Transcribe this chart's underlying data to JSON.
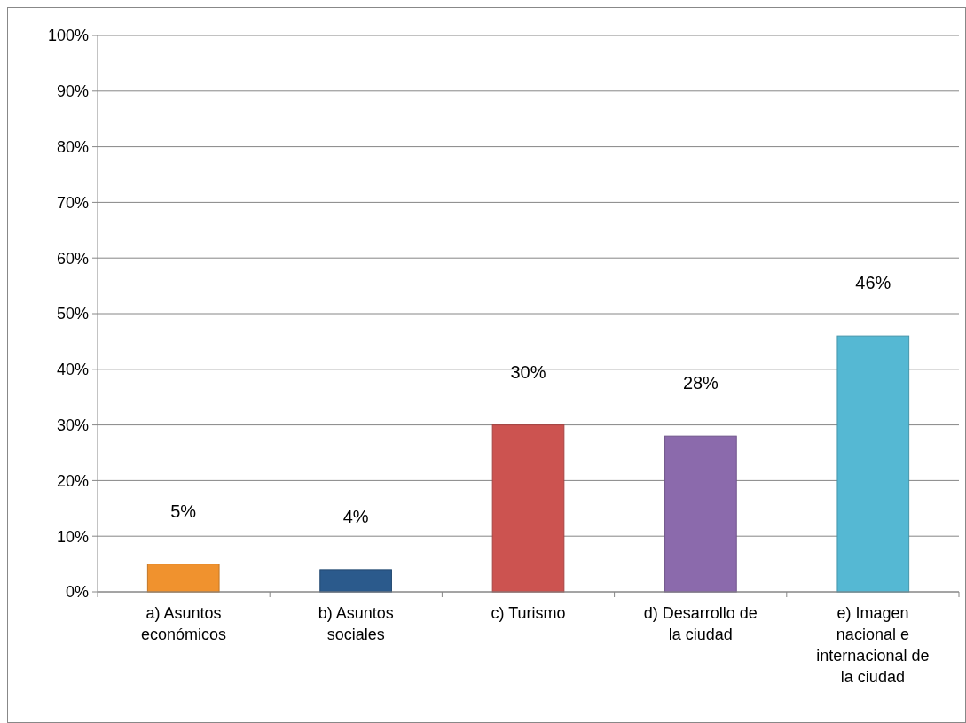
{
  "chart_data": {
    "type": "bar",
    "categories": [
      "a) Asuntos económicos",
      "b) Asuntos sociales",
      "c) Turismo",
      "d) Desarrollo de la ciudad",
      "e) Imagen nacional e internacional de la ciudad"
    ],
    "values": [
      5,
      4,
      30,
      28,
      46
    ],
    "colors": [
      "#f0922e",
      "#2b5a8c",
      "#cc5350",
      "#8b6aac",
      "#55b8d3"
    ],
    "value_labels": [
      "5%",
      "4%",
      "30%",
      "28%",
      "46%"
    ],
    "ylim": [
      0,
      100
    ],
    "yticks": [
      {
        "value": 0,
        "label": "0%"
      },
      {
        "value": 10,
        "label": "10%"
      },
      {
        "value": 20,
        "label": "20%"
      },
      {
        "value": 30,
        "label": "30%"
      },
      {
        "value": 40,
        "label": "40%"
      },
      {
        "value": 50,
        "label": "50%"
      },
      {
        "value": 60,
        "label": "60%"
      },
      {
        "value": 70,
        "label": "70%"
      },
      {
        "value": 80,
        "label": "80%"
      },
      {
        "value": 90,
        "label": "90%"
      },
      {
        "value": 100,
        "label": "100%"
      }
    ],
    "grid": "y"
  }
}
